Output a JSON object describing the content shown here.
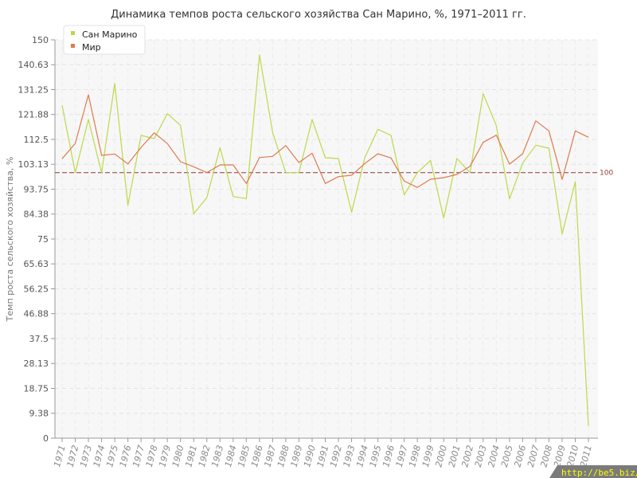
{
  "chart_data": {
    "type": "line",
    "title": "Динамика темпов роста сельского хозяйства Сан Марино, %, 1971–2011 гг.",
    "ylabel": "Темп роста сельского хозяйства, %",
    "xlabel": "",
    "ylim": [
      0,
      150
    ],
    "y_ticks": [
      "0",
      "9.38",
      "18.75",
      "28.13",
      "37.5",
      "46.88",
      "56.25",
      "65.63",
      "75",
      "84.38",
      "93.75",
      "103.13",
      "112.5",
      "121.88",
      "131.25",
      "140.63",
      "150"
    ],
    "x": [
      "1971",
      "1972",
      "1973",
      "1974",
      "1975",
      "1976",
      "1977",
      "1978",
      "1979",
      "1980",
      "1981",
      "1982",
      "1983",
      "1984",
      "1985",
      "1986",
      "1987",
      "1988",
      "1989",
      "1990",
      "1991",
      "1992",
      "1993",
      "1994",
      "1995",
      "1996",
      "1997",
      "1998",
      "1999",
      "2000",
      "2001",
      "2002",
      "2003",
      "2004",
      "2005",
      "2006",
      "2007",
      "2008",
      "2009",
      "2010",
      "2011"
    ],
    "series": [
      {
        "name": "Сан Марино",
        "color": "#bcd94a",
        "values": [
          125.3,
          100.0,
          120.0,
          100.0,
          133.6,
          87.7,
          114.0,
          112.8,
          122.2,
          117.8,
          84.5,
          90.6,
          109.4,
          91.0,
          90.2,
          144.3,
          115.1,
          100.0,
          100.0,
          120.0,
          105.6,
          105.3,
          85.1,
          105.6,
          116.3,
          114.0,
          91.6,
          100.0,
          104.6,
          82.9,
          105.3,
          100.0,
          129.7,
          117.7,
          90.1,
          103.6,
          110.3,
          109.2,
          76.9,
          96.6,
          4.6
        ]
      },
      {
        "name": "Мир",
        "color": "#e07a4f",
        "values": [
          105.2,
          111.0,
          129.3,
          106.5,
          107.0,
          103.3,
          109.5,
          115.0,
          110.9,
          104.1,
          102.2,
          100.0,
          102.9,
          102.9,
          95.9,
          105.7,
          106.1,
          110.2,
          103.8,
          107.3,
          95.9,
          98.5,
          99.0,
          103.4,
          107.1,
          105.5,
          96.8,
          94.4,
          97.5,
          98.1,
          99.3,
          102.4,
          111.4,
          114.1,
          103.2,
          107.1,
          119.5,
          115.7,
          97.4,
          115.7,
          113.3
        ]
      }
    ],
    "reference_line": {
      "value": 100,
      "label": "100",
      "color": "#a05050"
    },
    "legend": {
      "position": "top-left"
    },
    "grid": true
  },
  "watermark": "http://be5.biz/"
}
